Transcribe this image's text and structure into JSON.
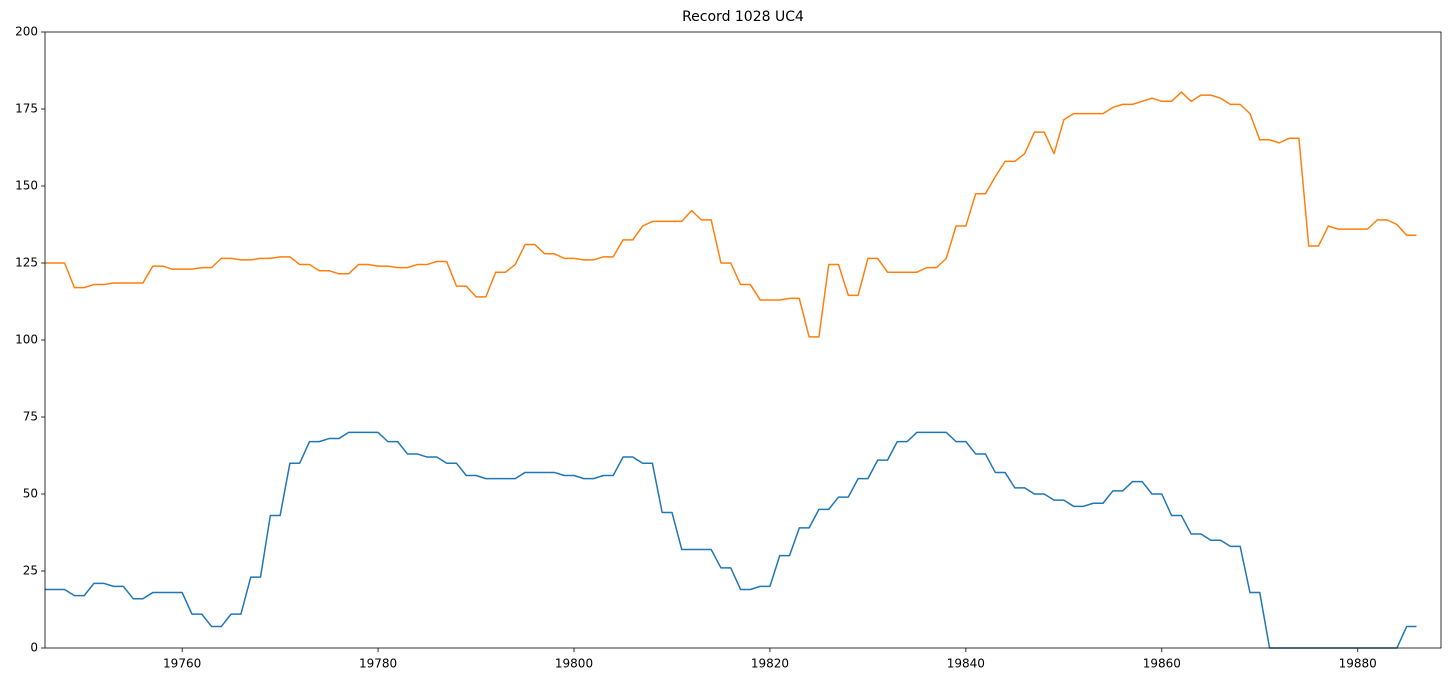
{
  "chart_data": {
    "type": "line",
    "title": "Record 1028 UC4",
    "x": [
      19746,
      19747,
      19748,
      19749,
      19750,
      19751,
      19752,
      19753,
      19754,
      19755,
      19756,
      19757,
      19758,
      19759,
      19760,
      19761,
      19762,
      19763,
      19764,
      19765,
      19766,
      19767,
      19768,
      19769,
      19770,
      19771,
      19772,
      19773,
      19774,
      19775,
      19776,
      19777,
      19778,
      19779,
      19780,
      19781,
      19782,
      19783,
      19784,
      19785,
      19786,
      19787,
      19788,
      19789,
      19790,
      19791,
      19792,
      19793,
      19794,
      19795,
      19796,
      19797,
      19798,
      19799,
      19800,
      19801,
      19802,
      19803,
      19804,
      19805,
      19806,
      19807,
      19808,
      19809,
      19810,
      19811,
      19812,
      19813,
      19814,
      19815,
      19816,
      19817,
      19818,
      19819,
      19820,
      19821,
      19822,
      19823,
      19824,
      19825,
      19826,
      19827,
      19828,
      19829,
      19830,
      19831,
      19832,
      19833,
      19834,
      19835,
      19836,
      19837,
      19838,
      19839,
      19840,
      19841,
      19842,
      19843,
      19844,
      19845,
      19846,
      19847,
      19848,
      19849,
      19850,
      19851,
      19852,
      19853,
      19854,
      19855,
      19856,
      19857,
      19858,
      19859,
      19860,
      19861,
      19862,
      19863,
      19864,
      19865,
      19866,
      19867,
      19868,
      19869,
      19870,
      19871,
      19872,
      19873,
      19874,
      19875,
      19876,
      19877,
      19878,
      19879,
      19880,
      19881,
      19882,
      19883,
      19884,
      19885,
      19886
    ],
    "series": [
      {
        "color": "#1f77b4",
        "values": [
          19,
          19,
          19,
          17,
          17,
          21,
          21,
          20,
          20,
          16,
          16,
          18,
          18,
          18,
          18,
          11,
          11,
          7,
          7,
          11,
          11,
          23,
          23,
          43,
          43,
          60,
          60,
          67,
          67,
          68,
          68,
          70,
          70,
          70,
          70,
          67,
          67,
          63,
          63,
          62,
          62,
          60,
          60,
          56,
          56,
          55,
          55,
          55,
          55,
          57,
          57,
          57,
          57,
          56,
          56,
          55,
          55,
          56,
          56,
          62,
          62,
          60,
          60,
          44,
          44,
          32,
          32,
          32,
          32,
          26,
          26,
          19,
          19,
          20,
          20,
          30,
          30,
          39,
          39,
          45,
          45,
          49,
          49,
          55,
          55,
          61,
          61,
          67,
          67,
          70,
          70,
          70,
          70,
          67,
          67,
          63,
          63,
          57,
          57,
          52,
          52,
          50,
          50,
          48,
          48,
          46,
          46,
          47,
          47,
          51,
          51,
          54,
          54,
          50,
          50,
          43,
          43,
          37,
          37,
          35,
          35,
          33,
          33,
          18,
          18,
          0,
          0,
          0,
          0,
          0,
          0,
          0,
          0,
          0,
          0,
          0,
          0,
          0,
          0,
          7,
          7
        ]
      },
      {
        "color": "#ff7f0e",
        "values": [
          125,
          125,
          125,
          117,
          117,
          118,
          118,
          118.5,
          118.5,
          118.5,
          118.5,
          124,
          124,
          123,
          123,
          123,
          123.5,
          123.5,
          126.5,
          126.5,
          126,
          126,
          126.5,
          126.5,
          127,
          127,
          124.5,
          124.5,
          122.5,
          122.5,
          121.5,
          121.5,
          124.5,
          124.5,
          124,
          124,
          123.5,
          123.5,
          124.5,
          124.5,
          125.5,
          125.5,
          117.5,
          117.5,
          114,
          114,
          122,
          122,
          124.5,
          131,
          131,
          128,
          128,
          126.5,
          126.5,
          126,
          126,
          127,
          127,
          132.5,
          132.5,
          137,
          138.5,
          138.5,
          138.5,
          138.5,
          142,
          139,
          139,
          125,
          125,
          118,
          118,
          113,
          113,
          113,
          113.5,
          113.5,
          101,
          101,
          124.5,
          124.5,
          114.5,
          114.5,
          126.5,
          126.5,
          122,
          122,
          122,
          122,
          123.5,
          123.5,
          126.5,
          137,
          137,
          147.5,
          147.5,
          153,
          158,
          158,
          160.5,
          167.5,
          167.5,
          160.5,
          171.5,
          173.5,
          173.5,
          173.5,
          173.5,
          175.5,
          176.5,
          176.5,
          177.5,
          178.5,
          177.5,
          177.5,
          180.5,
          177.5,
          179.5,
          179.5,
          178.5,
          176.5,
          176.5,
          173.5,
          165,
          165,
          164,
          165.5,
          165.5,
          130.5,
          130.5,
          137,
          136,
          136,
          136,
          136,
          139,
          139,
          137.5,
          134,
          134
        ]
      }
    ],
    "xlim": [
      19746,
      19888.5
    ],
    "ylim": [
      0,
      200
    ],
    "xticks": [
      19760,
      19780,
      19800,
      19820,
      19840,
      19860,
      19880
    ],
    "yticks": [
      0,
      25,
      50,
      75,
      100,
      125,
      150,
      175,
      200
    ]
  }
}
